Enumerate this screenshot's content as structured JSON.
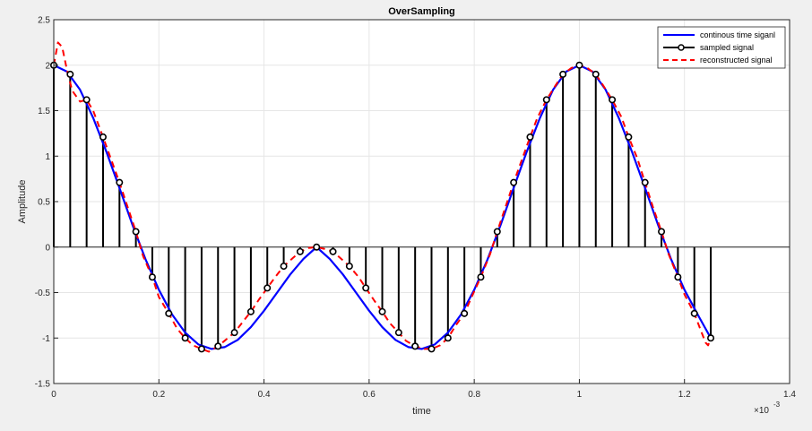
{
  "chart_data": {
    "type": "line",
    "title": "OverSampling",
    "xlabel": "time",
    "ylabel": "Amplitude",
    "x_exponent_label": "×10",
    "x_exponent_value": "-3",
    "xlim": [
      0,
      1.4
    ],
    "ylim": [
      -1.5,
      2.5
    ],
    "x_ticks": [
      0,
      0.2,
      0.4,
      0.6,
      0.8,
      1,
      1.2,
      1.4
    ],
    "x_tick_labels": [
      "0",
      "0.2",
      "0.4",
      "0.6",
      "0.8",
      "1",
      "1.2",
      "1.4"
    ],
    "y_ticks": [
      -1.5,
      -1,
      -0.5,
      0,
      0.5,
      1,
      1.5,
      2,
      2.5
    ],
    "y_tick_labels": [
      "-1.5",
      "-1",
      "-0.5",
      "0",
      "0.5",
      "1",
      "1.5",
      "2",
      "2.5"
    ],
    "grid": true,
    "legend_position": "top-right",
    "colors": {
      "continuous": "#0000ff",
      "sampled": "#000000",
      "reconstructed": "#ff0000",
      "grid": "#e6e6e6",
      "axes_bg": "#ffffff",
      "figure_bg": "#f0f0f0"
    },
    "series": [
      {
        "name": "continous time siganl",
        "style": "solid",
        "x": [
          0,
          0.025,
          0.05,
          0.075,
          0.1,
          0.125,
          0.15,
          0.175,
          0.2,
          0.225,
          0.25,
          0.275,
          0.3,
          0.325,
          0.35,
          0.375,
          0.4,
          0.425,
          0.45,
          0.475,
          0.5,
          0.525,
          0.55,
          0.575,
          0.6,
          0.625,
          0.65,
          0.675,
          0.7,
          0.725,
          0.75,
          0.775,
          0.8,
          0.825,
          0.85,
          0.875,
          0.9,
          0.925,
          0.95,
          0.975,
          1,
          1.025,
          1.05,
          1.075,
          1.1,
          1.125,
          1.15,
          1.175,
          1.2,
          1.225,
          1.25
        ],
        "y": [
          2.0,
          1.93,
          1.73,
          1.42,
          1.05,
          0.65,
          0.24,
          -0.14,
          -0.47,
          -0.74,
          -0.94,
          -1.07,
          -1.12,
          -1.1,
          -1.02,
          -0.88,
          -0.7,
          -0.5,
          -0.3,
          -0.13,
          0.0,
          -0.13,
          -0.3,
          -0.5,
          -0.7,
          -0.88,
          -1.02,
          -1.1,
          -1.12,
          -1.07,
          -0.94,
          -0.74,
          -0.47,
          -0.14,
          0.24,
          0.65,
          1.05,
          1.42,
          1.73,
          1.93,
          2.0,
          1.93,
          1.73,
          1.42,
          1.05,
          0.65,
          0.24,
          -0.14,
          -0.47,
          -0.74,
          -1.0
        ]
      },
      {
        "name": "sampled signal",
        "style": "stem",
        "x": [
          0,
          0.03125,
          0.0625,
          0.09375,
          0.125,
          0.15625,
          0.1875,
          0.21875,
          0.25,
          0.28125,
          0.3125,
          0.34375,
          0.375,
          0.40625,
          0.4375,
          0.46875,
          0.5,
          0.53125,
          0.5625,
          0.59375,
          0.625,
          0.65625,
          0.6875,
          0.71875,
          0.75,
          0.78125,
          0.8125,
          0.84375,
          0.875,
          0.90625,
          0.9375,
          0.96875,
          1,
          1.03125,
          1.0625,
          1.09375,
          1.125,
          1.15625,
          1.1875,
          1.21875,
          1.25
        ],
        "y": [
          2.0,
          1.9,
          1.62,
          1.21,
          0.71,
          0.17,
          -0.33,
          -0.73,
          -1.0,
          -1.12,
          -1.09,
          -0.94,
          -0.71,
          -0.45,
          -0.21,
          -0.05,
          0.0,
          -0.05,
          -0.21,
          -0.45,
          -0.71,
          -0.94,
          -1.09,
          -1.12,
          -1.0,
          -0.73,
          -0.33,
          0.17,
          0.71,
          1.21,
          1.62,
          1.9,
          2.0,
          1.9,
          1.62,
          1.21,
          0.71,
          0.17,
          -0.33,
          -0.73,
          -1.0
        ]
      },
      {
        "name": "reconstructed signal",
        "style": "dashed",
        "x": [
          0,
          0.008,
          0.016,
          0.025,
          0.035,
          0.05,
          0.0625,
          0.075,
          0.09375,
          0.11,
          0.125,
          0.14,
          0.15625,
          0.17,
          0.1875,
          0.2,
          0.21875,
          0.235,
          0.25,
          0.265,
          0.28125,
          0.295,
          0.3125,
          0.325,
          0.34375,
          0.36,
          0.375,
          0.39,
          0.40625,
          0.42,
          0.4375,
          0.455,
          0.46875,
          0.485,
          0.5,
          0.515,
          0.53125,
          0.545,
          0.5625,
          0.58,
          0.59375,
          0.61,
          0.625,
          0.64,
          0.65625,
          0.67,
          0.6875,
          0.705,
          0.71875,
          0.735,
          0.75,
          0.765,
          0.78125,
          0.795,
          0.8125,
          0.83,
          0.84375,
          0.86,
          0.875,
          0.89,
          0.90625,
          0.92,
          0.9375,
          0.955,
          0.96875,
          0.985,
          1,
          1.015,
          1.03125,
          1.045,
          1.0625,
          1.08,
          1.09375,
          1.11,
          1.125,
          1.14,
          1.15625,
          1.17,
          1.1875,
          1.2,
          1.21875,
          1.23,
          1.24,
          1.245,
          1.25
        ],
        "y": [
          2.0,
          2.25,
          2.2,
          1.95,
          1.72,
          1.6,
          1.62,
          1.5,
          1.21,
          0.95,
          0.71,
          0.45,
          0.17,
          -0.1,
          -0.33,
          -0.55,
          -0.73,
          -0.9,
          -1.0,
          -1.08,
          -1.12,
          -1.15,
          -1.09,
          -1.03,
          -0.94,
          -0.82,
          -0.71,
          -0.58,
          -0.45,
          -0.34,
          -0.21,
          -0.12,
          -0.05,
          -0.01,
          0.0,
          -0.02,
          -0.05,
          -0.12,
          -0.21,
          -0.33,
          -0.45,
          -0.59,
          -0.71,
          -0.84,
          -0.94,
          -1.03,
          -1.09,
          -1.12,
          -1.12,
          -1.08,
          -1.0,
          -0.86,
          -0.73,
          -0.55,
          -0.33,
          -0.08,
          0.17,
          0.45,
          0.71,
          0.95,
          1.21,
          1.42,
          1.62,
          1.78,
          1.9,
          1.97,
          2.0,
          1.97,
          1.9,
          1.78,
          1.62,
          1.43,
          1.21,
          0.98,
          0.71,
          0.44,
          0.17,
          -0.08,
          -0.33,
          -0.52,
          -0.73,
          -0.9,
          -1.05,
          -1.08,
          -1.0
        ]
      }
    ]
  }
}
